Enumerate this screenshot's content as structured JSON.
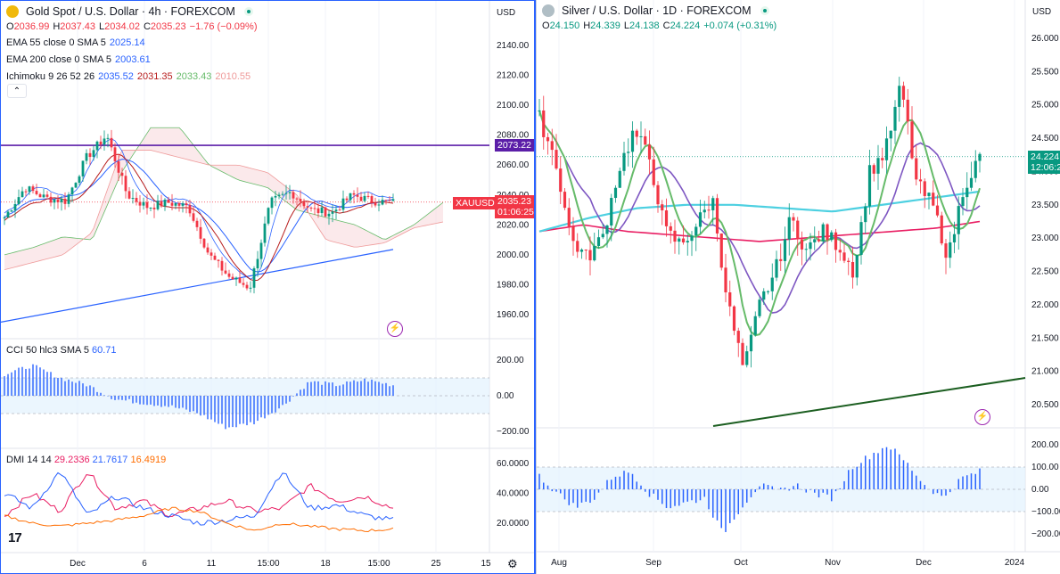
{
  "left_chart": {
    "title": "Gold Spot / U.S. Dollar · 4h · FOREXCOM",
    "currency": "USD",
    "ohlc": {
      "o_label": "O",
      "o": "2036.99",
      "h_label": "H",
      "h": "2037.43",
      "l_label": "L",
      "l": "2034.02",
      "c_label": "C",
      "c": "2035.23",
      "change": "−1.76 (−0.09%)"
    },
    "indicators": [
      {
        "label": "EMA 55 close 0 SMA 5",
        "values": [
          "2025.14"
        ],
        "colors": [
          "#2962ff"
        ]
      },
      {
        "label": "EMA 200 close 0 SMA 5",
        "values": [
          "2003.61"
        ],
        "colors": [
          "#2962ff"
        ]
      },
      {
        "label": "Ichimoku 9 26 52 26",
        "values": [
          "2035.52",
          "2031.35",
          "2033.43",
          "2010.55"
        ],
        "colors": [
          "#2962ff",
          "#b71c1c",
          "#66bb6a",
          "#ef9a9a"
        ]
      }
    ],
    "price_ticks": [
      "2140.00",
      "2120.00",
      "2100.00",
      "2080.00",
      "2060.00",
      "2040.00",
      "2020.00",
      "2000.00",
      "1980.00",
      "1960.00"
    ],
    "hline_label": "2073.22",
    "symbol_tag": "XAUUSD",
    "last_price": "2035.23",
    "countdown": "01:06:25",
    "cci": {
      "label": "CCI 50 hlc3 SMA 5",
      "value": "60.71",
      "ticks": [
        "200.00",
        "0.00",
        "−200.00"
      ]
    },
    "dmi": {
      "label": "DMI 14 14",
      "values": [
        "29.2336",
        "21.7617",
        "16.4919"
      ],
      "colors": [
        "#e91e63",
        "#2962ff",
        "#ff6d00"
      ],
      "ticks": [
        "60.0000",
        "40.0000",
        "20.0000"
      ]
    },
    "time_ticks": [
      "Dec",
      "6",
      "11",
      "15:00",
      "18",
      "15:00",
      "25",
      "15"
    ],
    "logo": "17"
  },
  "right_chart": {
    "title": "Silver / U.S. Dollar · 1D · FOREXCOM",
    "currency": "USD",
    "ohlc": {
      "o_label": "O",
      "o": "24.150",
      "h_label": "H",
      "h": "24.339",
      "l_label": "L",
      "l": "24.138",
      "c_label": "C",
      "c": "24.224",
      "change": "+0.074 (+0.31%)"
    },
    "price_ticks": [
      "26.000",
      "25.500",
      "25.000",
      "24.500",
      "24.000",
      "23.500",
      "23.000",
      "22.500",
      "22.000",
      "21.500",
      "21.000",
      "20.500"
    ],
    "last_price": "24.224",
    "countdown": "12:06:2",
    "osc_ticks": [
      "200.00",
      "100.00",
      "0.00",
      "−100.00",
      "−200.00"
    ],
    "time_ticks": [
      "Aug",
      "Sep",
      "Oct",
      "Nov",
      "Dec",
      "2024"
    ]
  },
  "colors": {
    "up": "#089981",
    "down": "#f23645",
    "accent": "#2962ff",
    "purple_line": "#5b1ea8",
    "trend_green": "#1b5e20"
  }
}
